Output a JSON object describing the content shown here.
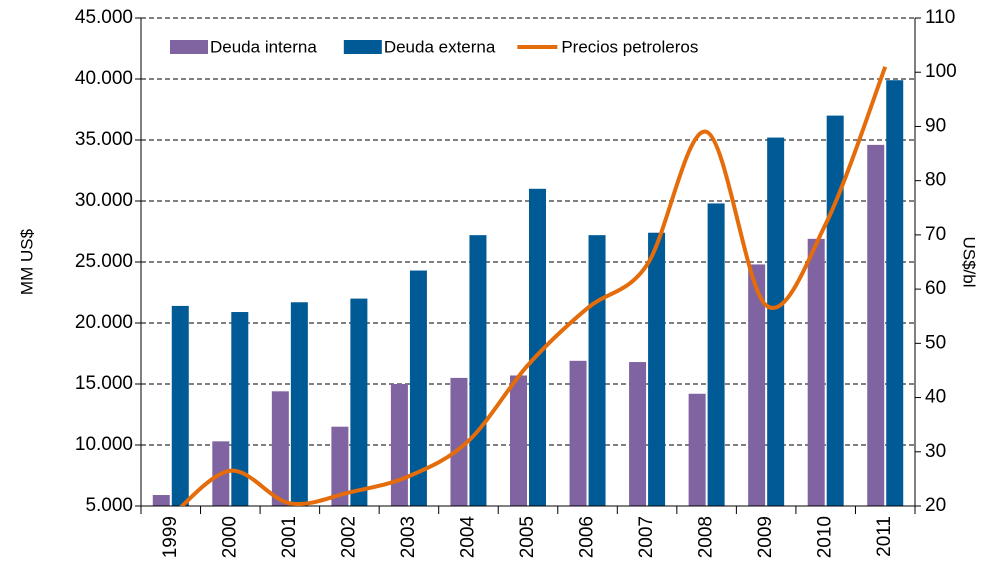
{
  "chart_data": {
    "type": "bar_line",
    "categories": [
      "1999",
      "2000",
      "2001",
      "2002",
      "2003",
      "2004",
      "2005",
      "2006",
      "2007",
      "2008",
      "2009",
      "2010",
      "2011"
    ],
    "series": [
      {
        "name": "Deuda interna",
        "type": "bar",
        "color": "#8064a2",
        "values": [
          5900,
          10300,
          14400,
          11500,
          15000,
          15500,
          15700,
          16900,
          16800,
          14200,
          24800,
          26900,
          34600
        ]
      },
      {
        "name": "Deuda externa",
        "type": "bar",
        "color": "#005a96",
        "values": [
          21400,
          20900,
          21700,
          22000,
          24300,
          27200,
          31000,
          27200,
          27400,
          29800,
          35200,
          37000,
          39900
        ]
      },
      {
        "name": "Precios petroleros",
        "type": "line",
        "axis": "y2",
        "color": "#e46c0a",
        "values": [
          18,
          26.5,
          20.5,
          22.5,
          25.5,
          32,
          46,
          56.5,
          64.5,
          89,
          57,
          72,
          101
        ]
      }
    ],
    "ylabel": "MM US$",
    "y2label": "US$/bl",
    "ylim": [
      5000,
      45000
    ],
    "yticks": [
      {
        "value": 5000,
        "label": "5.000"
      },
      {
        "value": 10000,
        "label": "10.000"
      },
      {
        "value": 15000,
        "label": "15.000"
      },
      {
        "value": 20000,
        "label": "20.000"
      },
      {
        "value": 25000,
        "label": "25.000"
      },
      {
        "value": 30000,
        "label": "30.000"
      },
      {
        "value": 35000,
        "label": "35.000"
      },
      {
        "value": 40000,
        "label": "40.000"
      },
      {
        "value": 45000,
        "label": "45.000"
      }
    ],
    "y2lim": [
      20,
      110
    ],
    "y2ticks": [
      20,
      30,
      40,
      50,
      60,
      70,
      80,
      90,
      100,
      110
    ],
    "grid": true,
    "legend": "top"
  }
}
